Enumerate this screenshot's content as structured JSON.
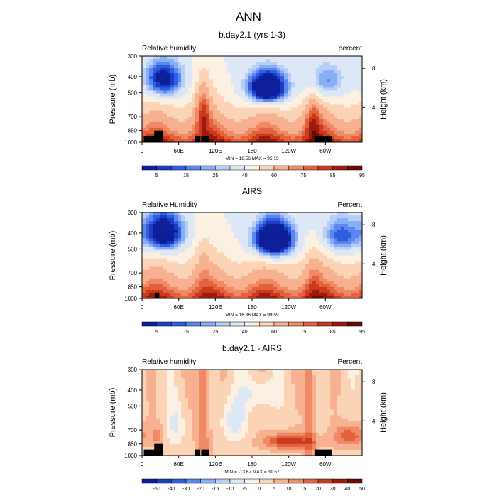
{
  "figure": {
    "title": "ANN"
  },
  "colorbar_palettes": {
    "humidity": [
      "#0f1f9a",
      "#1d3cc4",
      "#2f5ee0",
      "#5a86ee",
      "#8aaef5",
      "#b7cef8",
      "#dde7f6",
      "#fbf0e2",
      "#fbd4b8",
      "#f7b190",
      "#f08a66",
      "#e3623e",
      "#c93a1f",
      "#9c1b0d",
      "#6b0a05"
    ],
    "difference": [
      "#0f1f9a",
      "#1d3cc4",
      "#2f5ee0",
      "#5a86ee",
      "#8aaef5",
      "#b7cef8",
      "#dde7f6",
      "#fbf0e2",
      "#fbd4b8",
      "#f7b190",
      "#f08a66",
      "#e3623e",
      "#c93a1f",
      "#9c1b0d",
      "#6b0a05"
    ]
  },
  "chart_data": [
    {
      "type": "heatmap",
      "title": "b.day2.1 (yrs 1-3)",
      "left_label": "Relative humidity",
      "right_label": "percent",
      "ylabel": "Pressure (mb)",
      "ylabel_right": "Height (km)",
      "x_ticks": [
        "0",
        "60E",
        "120E",
        "180",
        "120W",
        "60W"
      ],
      "y_ticks": [
        "300",
        "400",
        "500",
        "700",
        "850",
        "1000"
      ],
      "y_ticks_right": [
        "8",
        "4"
      ],
      "min_max": "MIN = 18.56  MAX = 95.15",
      "colorbar_labels": [
        "5",
        "15",
        "25",
        "40",
        "60",
        "75",
        "85",
        "95"
      ],
      "palette": "humidity",
      "min": 18.56,
      "max": 95.15,
      "dry_centers": [
        {
          "lon": 35,
          "p": 420,
          "depth": 45
        },
        {
          "lon": 205,
          "p": 470,
          "depth": 70
        },
        {
          "lon": 300,
          "p": 430,
          "depth": 25
        }
      ],
      "moist_bands": [
        {
          "lon": 100,
          "p": 600,
          "depth": 25
        },
        {
          "lon": 280,
          "p": 700,
          "depth": 20
        }
      ],
      "missing_terrain": [
        {
          "lon0": 3,
          "lon1": 22,
          "p": 920
        },
        {
          "lon0": 20,
          "lon1": 34,
          "p": 850
        },
        {
          "lon0": 86,
          "lon1": 95,
          "p": 920
        },
        {
          "lon0": 97,
          "lon1": 110,
          "p": 920
        },
        {
          "lon0": 282,
          "lon1": 310,
          "p": 920
        }
      ]
    },
    {
      "type": "heatmap",
      "title": "AIRS",
      "left_label": "Relative Humidity",
      "right_label": "Percent",
      "ylabel": "Pressure (mb)",
      "ylabel_right": "Height (km)",
      "x_ticks": [
        "0",
        "60E",
        "120E",
        "180",
        "120W",
        "60W"
      ],
      "y_ticks": [
        "300",
        "400",
        "500",
        "700",
        "850",
        "1000"
      ],
      "y_ticks_right": [
        "8",
        "4"
      ],
      "min_max": "MIN = 16.36  MAX = 99.59",
      "colorbar_labels": [
        "5",
        "15",
        "25",
        "40",
        "60",
        "75",
        "85",
        "95"
      ],
      "palette": "humidity",
      "min": 16.36,
      "max": 99.59,
      "dry_centers": [
        {
          "lon": 35,
          "p": 400,
          "depth": 55
        },
        {
          "lon": 215,
          "p": 440,
          "depth": 75
        },
        {
          "lon": 325,
          "p": 420,
          "depth": 30
        }
      ],
      "moist_bands": [
        {
          "lon": 100,
          "p": 600,
          "depth": 10
        },
        {
          "lon": 280,
          "p": 700,
          "depth": 10
        }
      ],
      "missing_terrain": [
        {
          "lon0": 22,
          "lon1": 28,
          "p": 920
        }
      ]
    },
    {
      "type": "heatmap",
      "title": "b.day2.1 - AIRS",
      "left_label": "Relative humidity",
      "right_label": "Percent",
      "ylabel": "Pressure (mb)",
      "ylabel_right": "Height (km)",
      "x_ticks": [
        "0",
        "60E",
        "120E",
        "180",
        "120W",
        "60W"
      ],
      "y_ticks": [
        "300",
        "400",
        "500",
        "700",
        "850",
        "1000"
      ],
      "y_ticks_right": [
        "8",
        "4"
      ],
      "min_max": "MIN = -13.67  MAX = 31.57",
      "colorbar_labels": [
        "-50",
        "-40",
        "-30",
        "-20",
        "-15",
        "-10",
        "-5",
        "0",
        "5",
        "10",
        "15",
        "20",
        "30",
        "40",
        "50"
      ],
      "palette": "difference",
      "min": -13.67,
      "max": 31.57,
      "missing_terrain": [
        {
          "lon0": 3,
          "lon1": 22,
          "p": 920
        },
        {
          "lon0": 20,
          "lon1": 34,
          "p": 850
        },
        {
          "lon0": 86,
          "lon1": 95,
          "p": 920
        },
        {
          "lon0": 97,
          "lon1": 110,
          "p": 920
        },
        {
          "lon0": 282,
          "lon1": 310,
          "p": 920
        }
      ]
    }
  ]
}
